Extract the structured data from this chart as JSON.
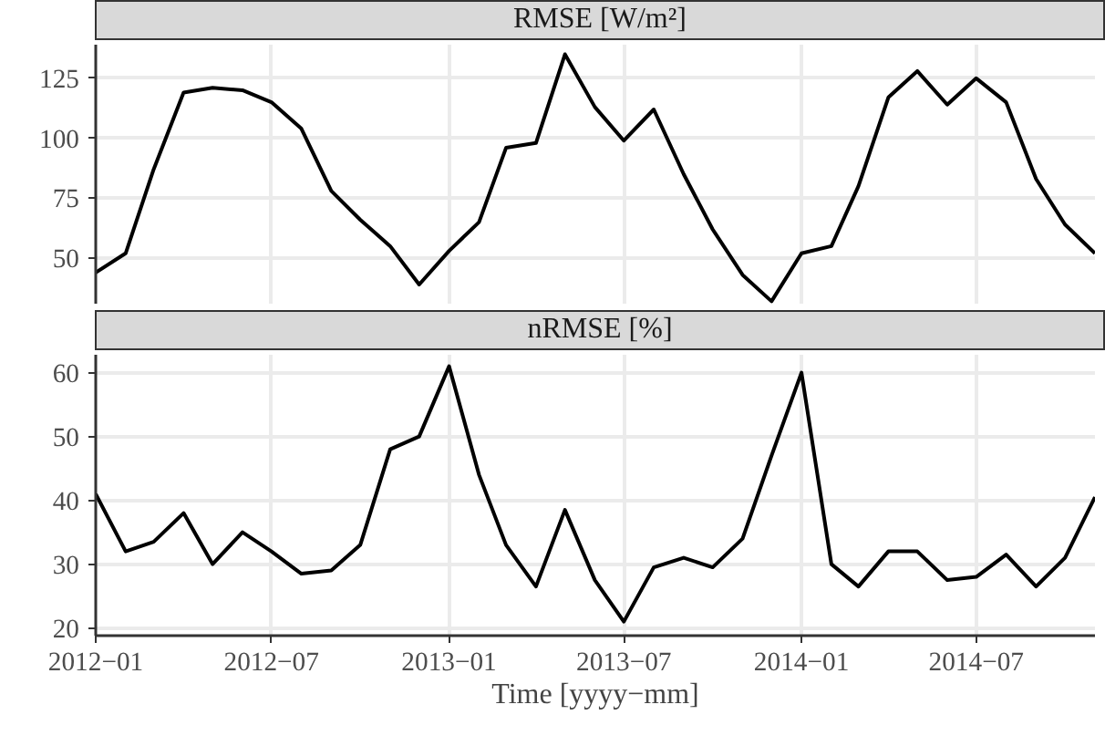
{
  "chart_data": [
    {
      "type": "line",
      "title": "RMSE [W/m²]",
      "x": [
        "2012-01",
        "2012-02",
        "2012-03",
        "2012-04",
        "2012-05",
        "2012-06",
        "2012-07",
        "2012-08",
        "2012-09",
        "2012-10",
        "2012-11",
        "2012-12",
        "2013-01",
        "2013-02",
        "2013-03",
        "2013-04",
        "2013-05",
        "2013-06",
        "2013-07",
        "2013-08",
        "2013-09",
        "2013-10",
        "2013-11",
        "2013-12",
        "2014-01",
        "2014-02",
        "2014-03",
        "2014-04",
        "2014-05",
        "2014-06",
        "2014-07",
        "2014-08",
        "2014-09",
        "2014-10",
        "2014-11"
      ],
      "series": [
        {
          "color": "#000000",
          "values": [
            44,
            52,
            87,
            119,
            121,
            120,
            115,
            104,
            78,
            66,
            55,
            39,
            53,
            65,
            96,
            98,
            135,
            113,
            99,
            112,
            85,
            62,
            43,
            32,
            52,
            55,
            80,
            117,
            128,
            114,
            125,
            115,
            83,
            64,
            52
          ]
        }
      ],
      "xlim": [
        "2012-01",
        "2014-11"
      ],
      "ylim": [
        31,
        139
      ],
      "yticks": [
        50,
        75,
        100,
        125
      ],
      "xticks": [
        {
          "value": "2012-01",
          "label": null
        },
        {
          "value": "2012-07",
          "label": null
        },
        {
          "value": "2013-01",
          "label": null
        },
        {
          "value": "2013-07",
          "label": null
        },
        {
          "value": "2014-01",
          "label": null
        },
        {
          "value": "2014-07",
          "label": null
        }
      ],
      "grid": true,
      "tick_labels": "y"
    },
    {
      "type": "line",
      "title": "nRMSE [%]",
      "xlabel": "Time [yyyy−mm]",
      "x": [
        "2012-01",
        "2012-02",
        "2012-03",
        "2012-04",
        "2012-05",
        "2012-06",
        "2012-07",
        "2012-08",
        "2012-09",
        "2012-10",
        "2012-11",
        "2012-12",
        "2013-01",
        "2013-02",
        "2013-03",
        "2013-04",
        "2013-05",
        "2013-06",
        "2013-07",
        "2013-08",
        "2013-09",
        "2013-10",
        "2013-11",
        "2013-12",
        "2014-01",
        "2014-02",
        "2014-03",
        "2014-04",
        "2014-05",
        "2014-06",
        "2014-07",
        "2014-08",
        "2014-09",
        "2014-10",
        "2014-11"
      ],
      "series": [
        {
          "color": "#000000",
          "values": [
            41,
            32,
            33.5,
            38,
            30,
            35,
            32,
            28.5,
            29,
            33,
            48,
            50,
            61,
            44,
            33,
            26.5,
            38.5,
            27.5,
            21,
            29.5,
            31,
            29.5,
            34,
            47,
            60,
            30,
            26.5,
            32,
            32,
            27.5,
            28,
            31.5,
            26.5,
            31,
            40.5
          ]
        }
      ],
      "xlim": [
        "2012-01",
        "2014-11"
      ],
      "ylim": [
        18.8,
        62.8
      ],
      "yticks": [
        20,
        30,
        40,
        50,
        60
      ],
      "xticks": [
        {
          "value": "2012-01",
          "label": "2012−01"
        },
        {
          "value": "2012-07",
          "label": "2012−07"
        },
        {
          "value": "2013-01",
          "label": "2013−01"
        },
        {
          "value": "2013-07",
          "label": "2013−07"
        },
        {
          "value": "2014-01",
          "label": "2014−01"
        },
        {
          "value": "2014-07",
          "label": "2014−07"
        }
      ],
      "grid": true
    }
  ]
}
